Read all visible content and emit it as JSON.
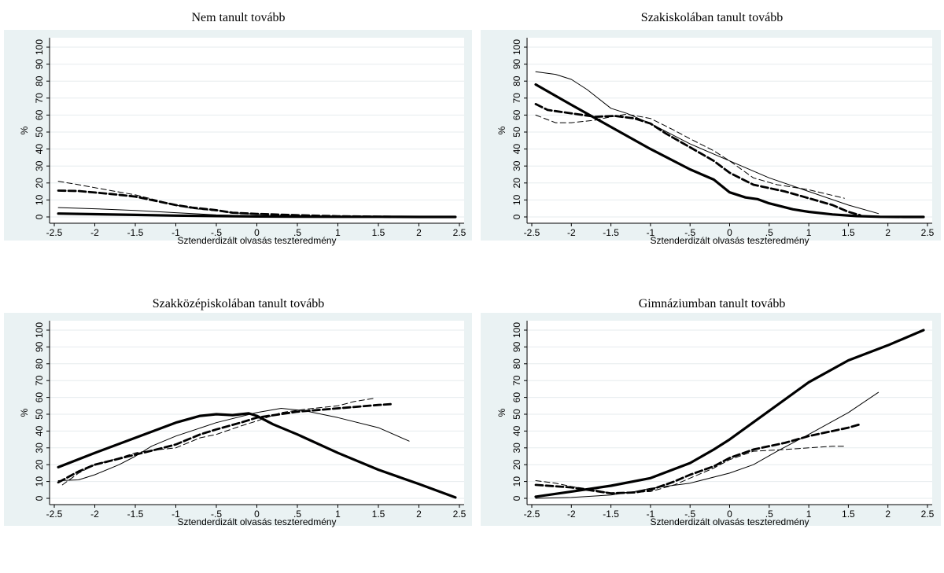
{
  "figure": {
    "background": "#eaf2f3",
    "plot_background": "#ffffff",
    "line_color": "#000000"
  },
  "chart_data": [
    {
      "type": "line",
      "title": "Nem tanult tovább",
      "xlabel": "Sztenderdizált olvasás teszteredmény",
      "ylabel": "%",
      "xlim": [
        -2.5,
        2.5
      ],
      "ylim": [
        0,
        100
      ],
      "xticks": [
        "-2.5",
        "-2",
        "-1.5",
        "-1",
        "-.5",
        "0",
        ".5",
        "1",
        "1.5",
        "2",
        "2.5"
      ],
      "yticks": [
        "0",
        "10",
        "20",
        "30",
        "40",
        "50",
        "60",
        "70",
        "80",
        "90",
        "100"
      ],
      "grid": true,
      "series": [
        {
          "style": "thick-solid",
          "x": [
            -2.45,
            -2,
            -1.5,
            -1,
            -0.5,
            0,
            0.5,
            1,
            1.5,
            2,
            2.45
          ],
          "y": [
            2,
            1.6,
            1.2,
            0.8,
            0.5,
            0.3,
            0.2,
            0.1,
            0.1,
            0,
            0
          ]
        },
        {
          "style": "thin-solid",
          "x": [
            -2.45,
            -2,
            -1.5,
            -1,
            -0.5,
            0,
            0.5,
            1,
            1.5
          ],
          "y": [
            5.5,
            4.8,
            3.8,
            2.5,
            1.2,
            0.6,
            0.3,
            0.1,
            0
          ]
        },
        {
          "style": "thick-dash",
          "x": [
            -2.45,
            -2.2,
            -1.8,
            -1.5,
            -1.2,
            -1,
            -0.8,
            -0.5,
            -0.3,
            0,
            0.5,
            1,
            1.5,
            1.65
          ],
          "y": [
            15.5,
            15.3,
            13.5,
            12,
            9,
            7,
            5.5,
            4,
            2.5,
            1.8,
            1,
            0.4,
            0.2,
            0.1
          ]
        },
        {
          "style": "thin-dash",
          "x": [
            -2.45,
            -2.2,
            -1.8,
            -1.5,
            -1.2,
            -1,
            -0.8,
            -0.5,
            -0.3,
            0,
            0.5,
            1,
            1.45
          ],
          "y": [
            21,
            19,
            15.5,
            13,
            9.5,
            7,
            5,
            3.5,
            2.5,
            1.5,
            0.6,
            0.2,
            0.1
          ]
        }
      ]
    },
    {
      "type": "line",
      "title": "Szakiskolában tanult tovább",
      "xlabel": "Sztenderdizált olvasás teszteredmény",
      "ylabel": "%",
      "xlim": [
        -2.5,
        2.5
      ],
      "ylim": [
        0,
        100
      ],
      "xticks": [
        "-2.5",
        "-2",
        "-1.5",
        "-1",
        "-.5",
        "0",
        ".5",
        "1",
        "1.5",
        "2",
        "2.5"
      ],
      "yticks": [
        "0",
        "10",
        "20",
        "30",
        "40",
        "50",
        "60",
        "70",
        "80",
        "90",
        "100"
      ],
      "grid": true,
      "series": [
        {
          "style": "thick-solid",
          "x": [
            -2.45,
            -2,
            -1.5,
            -1,
            -0.5,
            -0.2,
            0,
            0.2,
            0.35,
            0.5,
            0.8,
            1,
            1.3,
            1.6,
            1.9,
            2.2,
            2.45
          ],
          "y": [
            78,
            66,
            53,
            40,
            28,
            22,
            14.5,
            11.5,
            10.5,
            8,
            4.5,
            3,
            1.5,
            0.5,
            0.1,
            0,
            0
          ]
        },
        {
          "style": "thin-solid",
          "x": [
            -2.45,
            -2.2,
            -2,
            -1.8,
            -1.5,
            -1.3,
            -1,
            -0.5,
            0,
            0.5,
            1,
            1.5,
            1.88
          ],
          "y": [
            85.5,
            84,
            81,
            75,
            64,
            61,
            55,
            43,
            33,
            23,
            15,
            7,
            2
          ]
        },
        {
          "style": "thick-dash",
          "x": [
            -2.45,
            -2.3,
            -2,
            -1.7,
            -1.45,
            -1.2,
            -1,
            -0.8,
            -0.5,
            -0.2,
            0,
            0.3,
            0.7,
            1,
            1.3,
            1.5,
            1.65
          ],
          "y": [
            66.5,
            63,
            61,
            59,
            59.5,
            58,
            55,
            49,
            41,
            33,
            26,
            19,
            15,
            11,
            7,
            3,
            1
          ]
        },
        {
          "style": "thin-dash",
          "x": [
            -2.45,
            -2.2,
            -2,
            -1.7,
            -1.5,
            -1.3,
            -1,
            -0.7,
            -0.5,
            -0.2,
            0,
            0.3,
            0.6,
            1,
            1.45
          ],
          "y": [
            60,
            55.5,
            55.5,
            57,
            59,
            60.5,
            58,
            51,
            46,
            39,
            33,
            23,
            19,
            16,
            11
          ]
        }
      ]
    },
    {
      "type": "line",
      "title": "Szakközépiskolában tanult tovább",
      "xlabel": "Sztenderdizált olvasás teszteredmény",
      "ylabel": "%",
      "xlim": [
        -2.5,
        2.5
      ],
      "ylim": [
        0,
        100
      ],
      "xticks": [
        "-2.5",
        "-2",
        "-1.5",
        "-1",
        "-.5",
        "0",
        ".5",
        "1",
        "1.5",
        "2",
        "2.5"
      ],
      "yticks": [
        "0",
        "10",
        "20",
        "30",
        "40",
        "50",
        "60",
        "70",
        "80",
        "90",
        "100"
      ],
      "grid": true,
      "series": [
        {
          "style": "thick-solid",
          "x": [
            -2.45,
            -2,
            -1.5,
            -1,
            -0.7,
            -0.5,
            -0.3,
            -0.1,
            0,
            0.2,
            0.5,
            1,
            1.5,
            2,
            2.45
          ],
          "y": [
            18.5,
            27,
            36,
            45,
            49,
            50,
            49.5,
            50.5,
            49,
            44,
            38,
            27,
            17,
            8.5,
            0.5
          ]
        },
        {
          "style": "thin-solid",
          "x": [
            -2.45,
            -2.2,
            -2,
            -1.7,
            -1.5,
            -1.3,
            -1,
            -0.5,
            0,
            0.3,
            0.6,
            1,
            1.5,
            1.88
          ],
          "y": [
            10.5,
            11,
            14,
            20,
            25,
            31,
            37,
            45,
            51,
            53.5,
            52,
            48,
            42,
            34
          ]
        },
        {
          "style": "thick-dash",
          "x": [
            -2.45,
            -2.2,
            -2,
            -1.5,
            -1.2,
            -1,
            -0.7,
            -0.5,
            -0.2,
            0,
            0.5,
            1,
            1.5,
            1.65
          ],
          "y": [
            9.5,
            16,
            20,
            26,
            29.5,
            32,
            38,
            41,
            45,
            48,
            51.5,
            53.5,
            55.5,
            56
          ]
        },
        {
          "style": "thin-dash",
          "x": [
            -2.4,
            -2.2,
            -2,
            -1.7,
            -1.5,
            -1.3,
            -1,
            -0.7,
            -0.5,
            -0.2,
            0,
            0.3,
            0.6,
            1,
            1.2,
            1.45
          ],
          "y": [
            8,
            15,
            20,
            24,
            27,
            28.5,
            30,
            36,
            38,
            43,
            46,
            51,
            53,
            55,
            57.5,
            59.5
          ]
        }
      ]
    },
    {
      "type": "line",
      "title": "Gimnáziumban tanult tovább",
      "xlabel": "Sztenderdizált olvasás teszteredmény",
      "ylabel": "%",
      "xlim": [
        -2.5,
        2.5
      ],
      "ylim": [
        0,
        100
      ],
      "xticks": [
        "-2.5",
        "-2",
        "-1.5",
        "-1",
        "-.5",
        "0",
        ".5",
        "1",
        "1.5",
        "2",
        "2.5"
      ],
      "yticks": [
        "0",
        "10",
        "20",
        "30",
        "40",
        "50",
        "60",
        "70",
        "80",
        "90",
        "100"
      ],
      "grid": true,
      "series": [
        {
          "style": "thick-solid",
          "x": [
            -2.45,
            -2,
            -1.5,
            -1,
            -0.5,
            -0.2,
            0,
            0.5,
            1,
            1.5,
            2,
            2.45
          ],
          "y": [
            1,
            4,
            7.5,
            12,
            21,
            29,
            35,
            52,
            69,
            82,
            91,
            100
          ]
        },
        {
          "style": "thin-solid",
          "x": [
            -2.45,
            -2,
            -1.5,
            -1.2,
            -1,
            -0.5,
            0,
            0.3,
            0.6,
            1,
            1.5,
            1.88
          ],
          "y": [
            0,
            0.5,
            2,
            4,
            6,
            9,
            15,
            20,
            28,
            38,
            51,
            63
          ]
        },
        {
          "style": "thick-dash",
          "x": [
            -2.45,
            -2,
            -1.5,
            -1.2,
            -1,
            -0.7,
            -0.5,
            -0.2,
            0,
            0.3,
            0.7,
            1,
            1.5,
            1.65
          ],
          "y": [
            8,
            6.5,
            3,
            3.5,
            5,
            10,
            14,
            19,
            24,
            29,
            33,
            37,
            42,
            44
          ]
        },
        {
          "style": "thin-dash",
          "x": [
            -2.45,
            -2.2,
            -2,
            -1.7,
            -1.5,
            -1.3,
            -1,
            -0.7,
            -0.5,
            -0.2,
            0,
            0.3,
            0.7,
            1,
            1.3,
            1.45
          ],
          "y": [
            10.5,
            9,
            7,
            5,
            3,
            3.5,
            4,
            8,
            12,
            18,
            23,
            28,
            29,
            30,
            31,
            31
          ]
        }
      ]
    }
  ]
}
